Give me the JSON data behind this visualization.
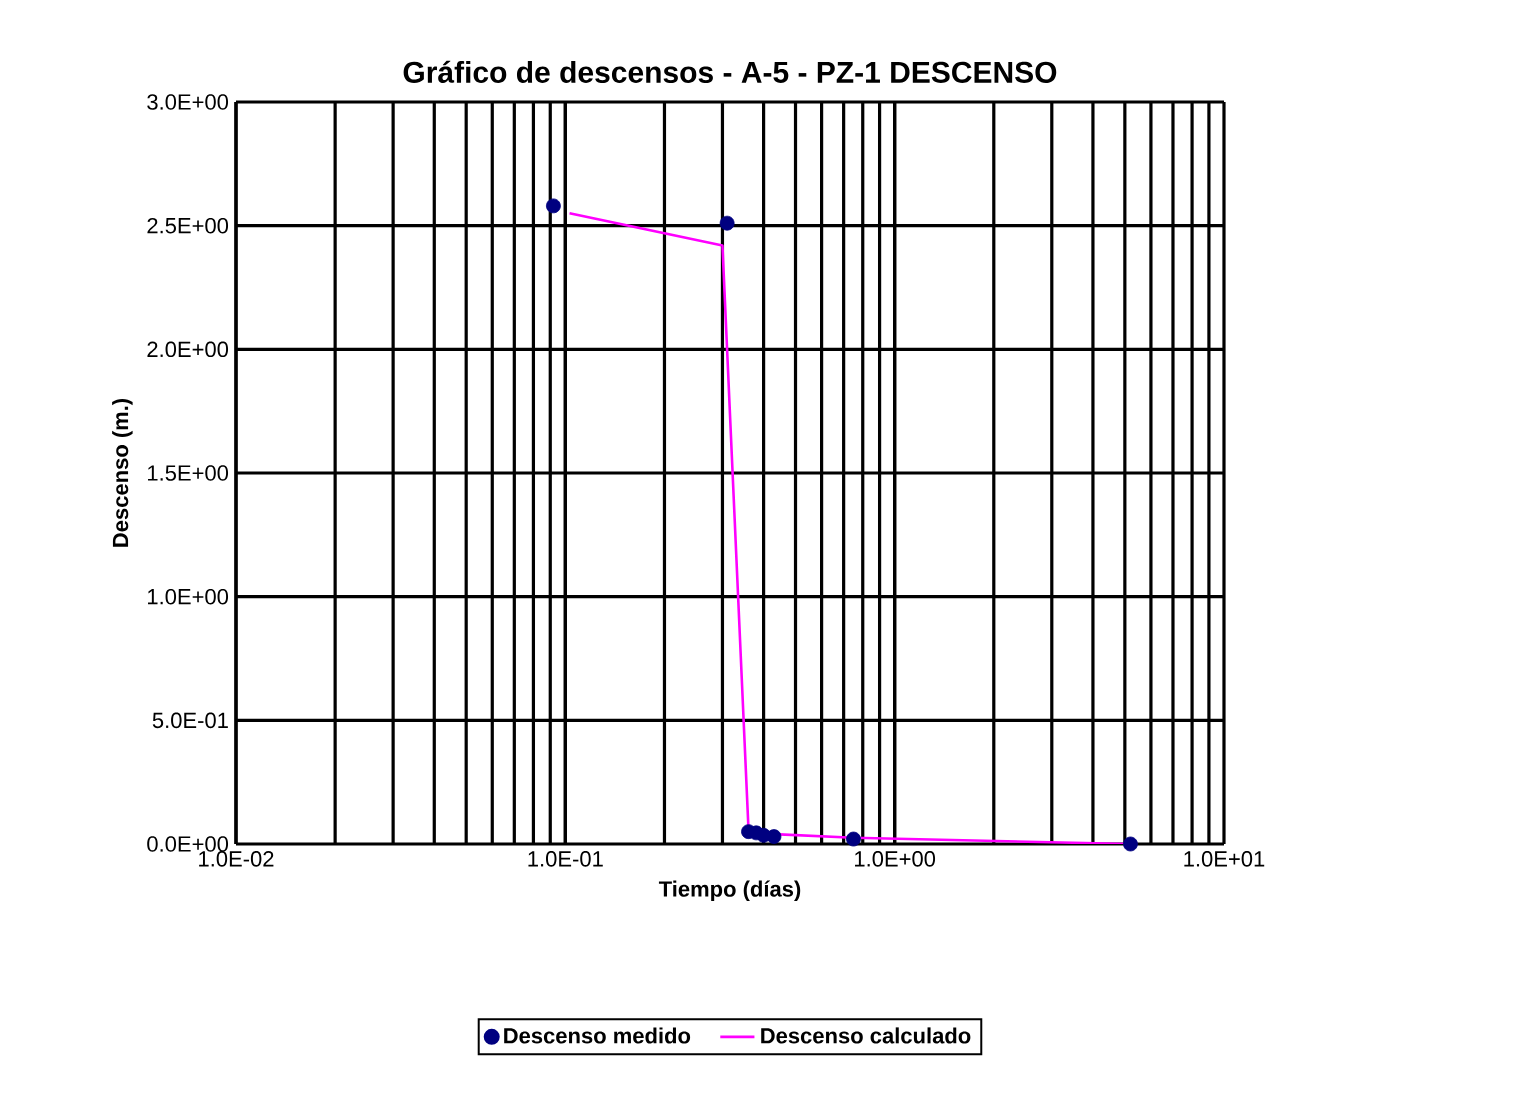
{
  "chart_data": {
    "type": "scatter",
    "title": "Gráfico de descensos - A-5 - PZ-1 DESCENSO",
    "xlabel": "Tiempo (días)",
    "ylabel": "Descenso (m.)",
    "log": "x",
    "grid": true,
    "legend": "bottom",
    "xlim": [
      0.01,
      10
    ],
    "ylim": [
      0,
      3
    ],
    "xticks": [
      {
        "value": 0.01,
        "label": "1.0E-02"
      },
      {
        "value": 0.1,
        "label": "1.0E-01"
      },
      {
        "value": 1,
        "label": "1.0E+00"
      },
      {
        "value": 10,
        "label": "1.0E+01"
      }
    ],
    "yticks": [
      {
        "value": 0,
        "label": "0.0E+00"
      },
      {
        "value": 0.5,
        "label": "5.0E-01"
      },
      {
        "value": 1,
        "label": "1.0E+00"
      },
      {
        "value": 1.5,
        "label": "1.5E+00"
      },
      {
        "value": 2,
        "label": "2.0E+00"
      },
      {
        "value": 2.5,
        "label": "2.5E+00"
      },
      {
        "value": 3,
        "label": "3.0E+00"
      }
    ],
    "series": [
      {
        "name": "Descenso medido",
        "marker": "circle",
        "color": "#000080",
        "x": [
          0.092,
          0.31,
          0.36,
          0.38,
          0.4,
          0.43,
          0.75,
          5.2
        ],
        "values": [
          2.58,
          2.51,
          0.05,
          0.045,
          0.035,
          0.03,
          0.02,
          0.0
        ]
      },
      {
        "name": "Descenso calculado",
        "type": "line",
        "marker": "none",
        "color": "#ff00ff",
        "x": [
          0.103,
          0.3,
          0.36,
          0.43,
          0.75,
          5.2
        ],
        "values": [
          2.55,
          2.42,
          0.055,
          0.04,
          0.025,
          0.0
        ]
      }
    ]
  }
}
